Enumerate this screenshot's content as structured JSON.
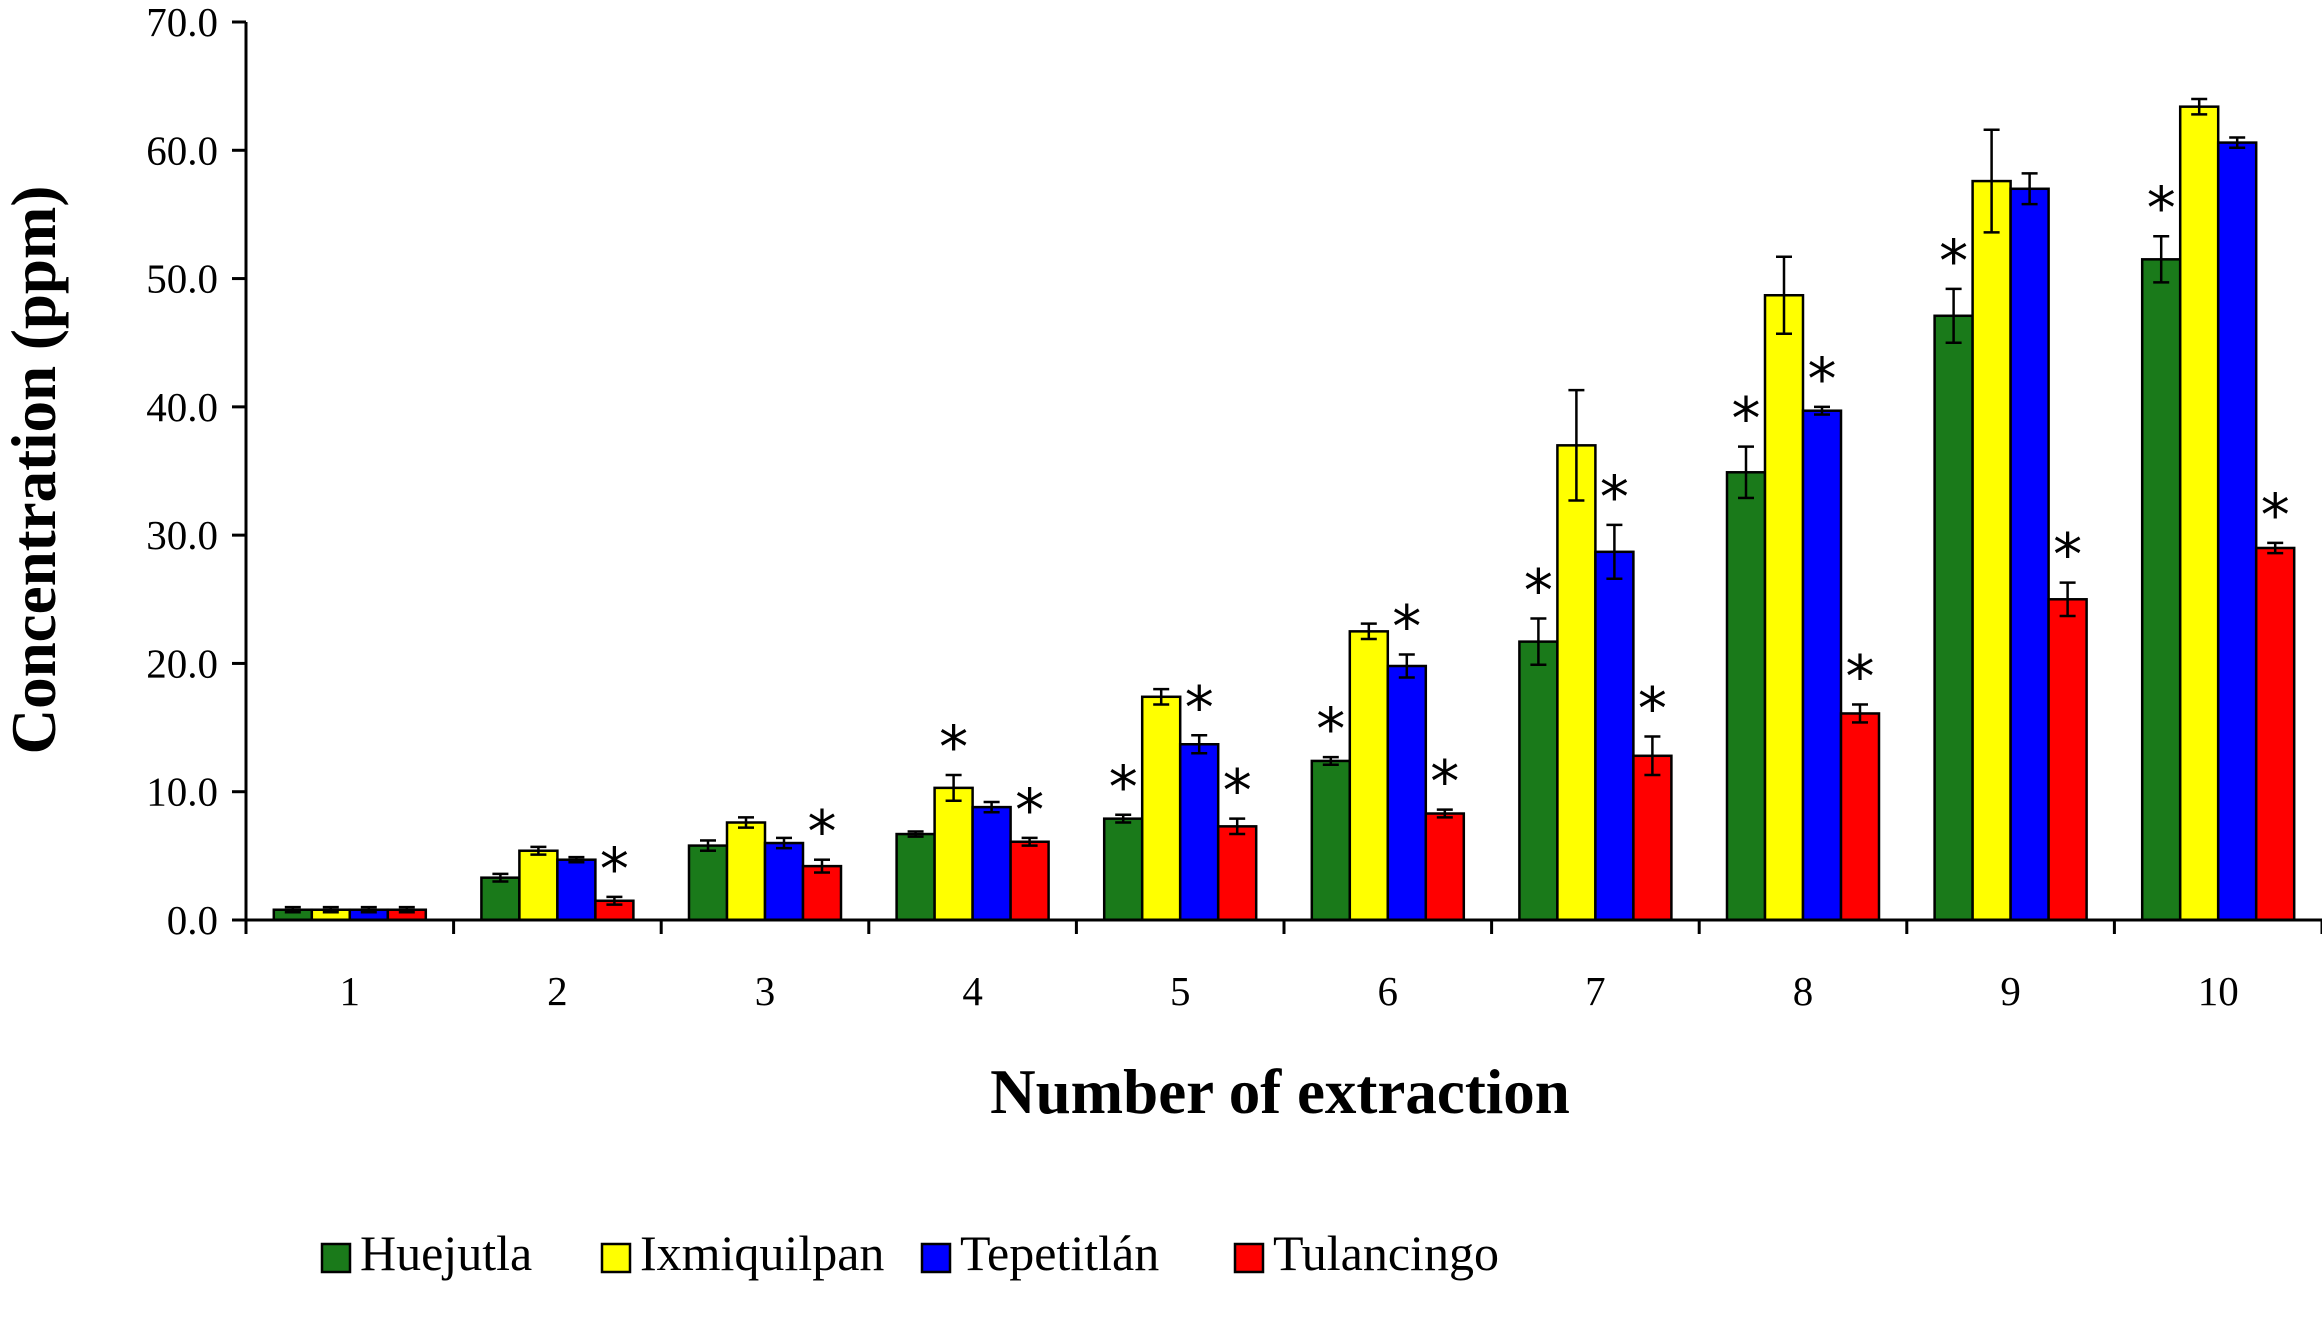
{
  "chart_data": {
    "type": "bar",
    "xlabel": "Number of extraction",
    "ylabel": "Concentration (ppm)",
    "ylim": [
      0,
      70
    ],
    "y_ticks": [
      "0.0",
      "10.0",
      "20.0",
      "30.0",
      "40.0",
      "50.0",
      "60.0",
      "70.0"
    ],
    "categories": [
      "1",
      "2",
      "3",
      "4",
      "5",
      "6",
      "7",
      "8",
      "9",
      "10"
    ],
    "grid": false,
    "legend_position": "bottom",
    "significance_marker": "*",
    "series": [
      {
        "name": "Huejutla",
        "color": "#1a7a1a",
        "values": [
          0.8,
          3.3,
          5.8,
          6.7,
          7.9,
          12.4,
          21.7,
          34.9,
          47.1,
          51.5
        ],
        "errors": [
          0.2,
          0.3,
          0.4,
          0.2,
          0.3,
          0.3,
          1.8,
          2.0,
          2.1,
          1.8
        ],
        "significant": [
          false,
          false,
          false,
          false,
          true,
          true,
          true,
          true,
          true,
          true
        ]
      },
      {
        "name": "Ixmiquilpan",
        "color": "#ffff00",
        "values": [
          0.8,
          5.4,
          7.6,
          10.3,
          17.4,
          22.5,
          37.0,
          48.7,
          57.6,
          63.4
        ],
        "errors": [
          0.2,
          0.3,
          0.4,
          1.0,
          0.6,
          0.6,
          4.3,
          3.0,
          4.0,
          0.6
        ],
        "significant": [
          false,
          false,
          false,
          true,
          false,
          false,
          false,
          false,
          false,
          false
        ]
      },
      {
        "name": "Tepetitlán",
        "color": "#0000ff",
        "values": [
          0.8,
          4.7,
          6.0,
          8.8,
          13.7,
          19.8,
          28.7,
          39.7,
          57.0,
          60.6
        ],
        "errors": [
          0.2,
          0.2,
          0.4,
          0.4,
          0.7,
          0.9,
          2.1,
          0.3,
          1.2,
          0.4
        ],
        "significant": [
          false,
          false,
          false,
          false,
          true,
          true,
          true,
          true,
          false,
          false
        ]
      },
      {
        "name": "Tulancingo",
        "color": "#ff0000",
        "values": [
          0.8,
          1.5,
          4.2,
          6.1,
          7.3,
          8.3,
          12.8,
          16.1,
          25.0,
          29.0
        ],
        "errors": [
          0.2,
          0.3,
          0.5,
          0.3,
          0.6,
          0.3,
          1.5,
          0.7,
          1.3,
          0.4
        ],
        "significant": [
          false,
          true,
          true,
          true,
          true,
          true,
          true,
          true,
          true,
          true
        ]
      }
    ]
  }
}
